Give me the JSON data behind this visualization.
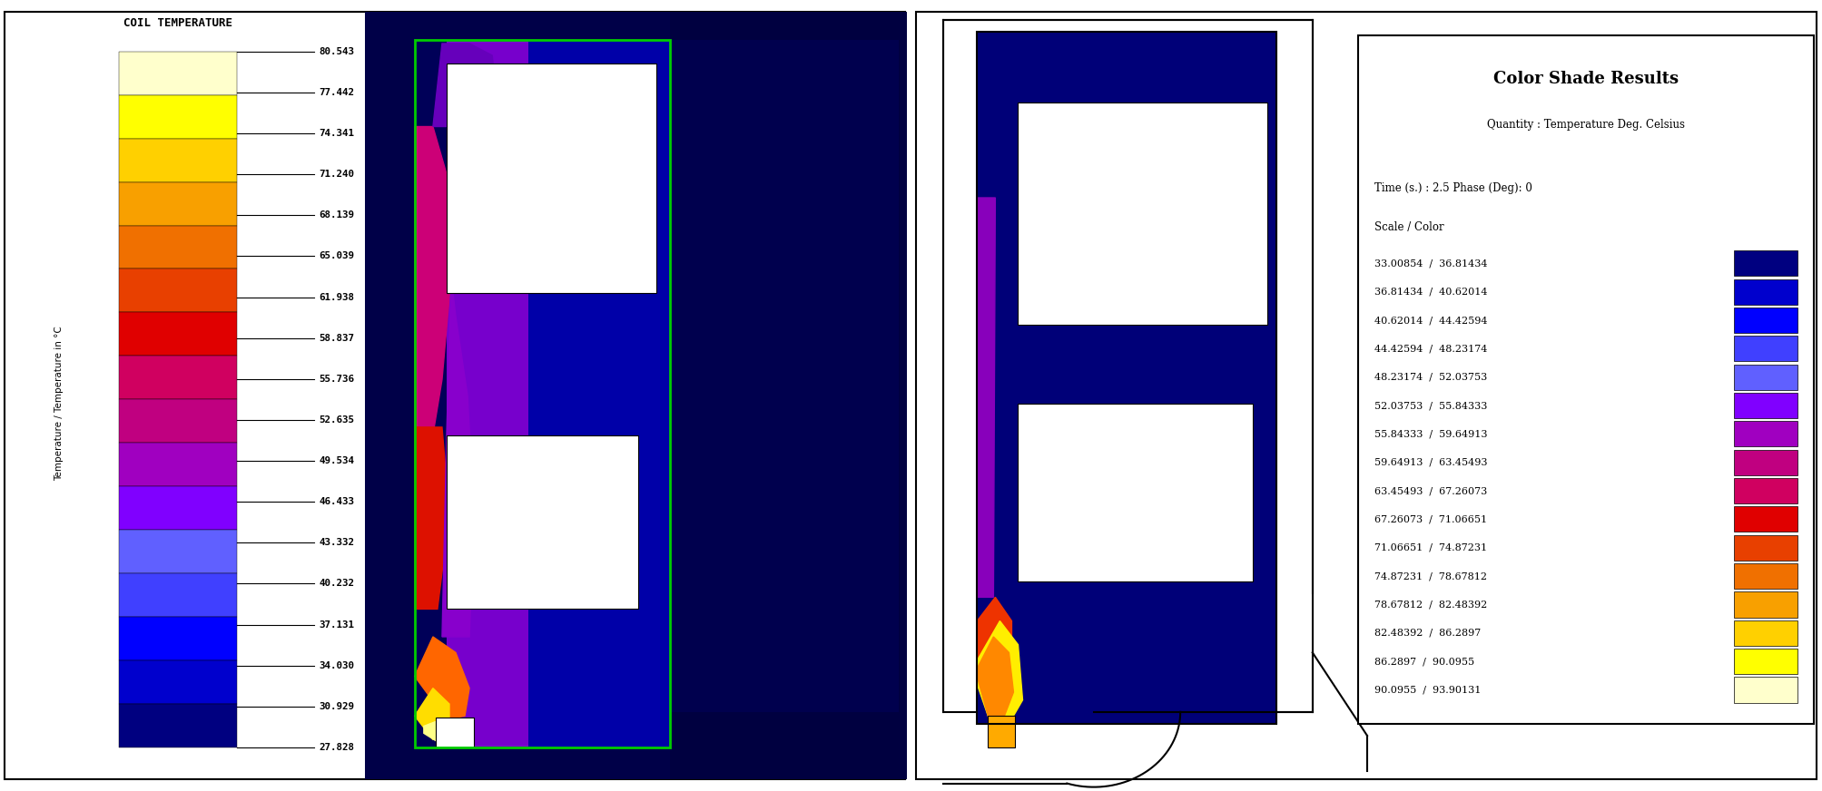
{
  "left_colorbar_title": "COIL TEMPERATURE",
  "left_colorbar_ylabel": "Temperature / Temperature in °C",
  "left_colorbar_values": [
    80.543,
    77.442,
    74.341,
    71.24,
    68.139,
    65.039,
    61.938,
    58.837,
    55.736,
    52.635,
    49.534,
    46.433,
    43.332,
    40.232,
    37.131,
    34.03,
    30.929,
    27.828
  ],
  "right_legend_title": "Color Shade Results",
  "right_legend_subtitle": "Quantity : Temperature Deg. Celsius",
  "right_legend_time": "Time (s.) : 2.5 Phase (Deg): 0",
  "right_legend_scale": "Scale / Color",
  "right_legend_entries": [
    [
      "33.00854",
      "36.81434"
    ],
    [
      "36.81434",
      "40.62014"
    ],
    [
      "40.62014",
      "44.42594"
    ],
    [
      "44.42594",
      "48.23174"
    ],
    [
      "48.23174",
      "52.03753"
    ],
    [
      "52.03753",
      "55.84333"
    ],
    [
      "55.84333",
      "59.64913"
    ],
    [
      "59.64913",
      "63.45493"
    ],
    [
      "63.45493",
      "67.26073"
    ],
    [
      "67.26073",
      "71.06651"
    ],
    [
      "71.06651",
      "74.87231"
    ],
    [
      "74.87231",
      "78.67812"
    ],
    [
      "78.67812",
      "82.48392"
    ],
    [
      "82.48392",
      "86.2897"
    ],
    [
      "86.2897",
      "90.0955"
    ],
    [
      "90.0955",
      "93.90131"
    ]
  ],
  "colormap_colors_hot_to_cold": [
    "#ffffcc",
    "#ffff00",
    "#ffd000",
    "#f8a000",
    "#f07000",
    "#e84000",
    "#e00000",
    "#d00060",
    "#c00080",
    "#a000c0",
    "#8000ff",
    "#6060ff",
    "#4040ff",
    "#0000ff",
    "#0000cd",
    "#000080"
  ],
  "bg_color": "#ffffff",
  "left_panel_bg": "#ffffff",
  "right_panel_bg": "#ffffff",
  "left_outer_border_color": "#000000",
  "right_outer_border_color": "#000000",
  "green_rect_color": "#00cc00",
  "coil_dark_blue": "#000070",
  "coil_mid_blue": "#0000a0",
  "coil_purple": "#6600bb",
  "coil_magenta": "#cc0088",
  "coil_red": "#dd0000",
  "coil_orange": "#ee6600",
  "coil_yellow": "#ffee00",
  "left_sim_bg_dark": "#00004a",
  "left_sim_bg_medium": "#000088"
}
